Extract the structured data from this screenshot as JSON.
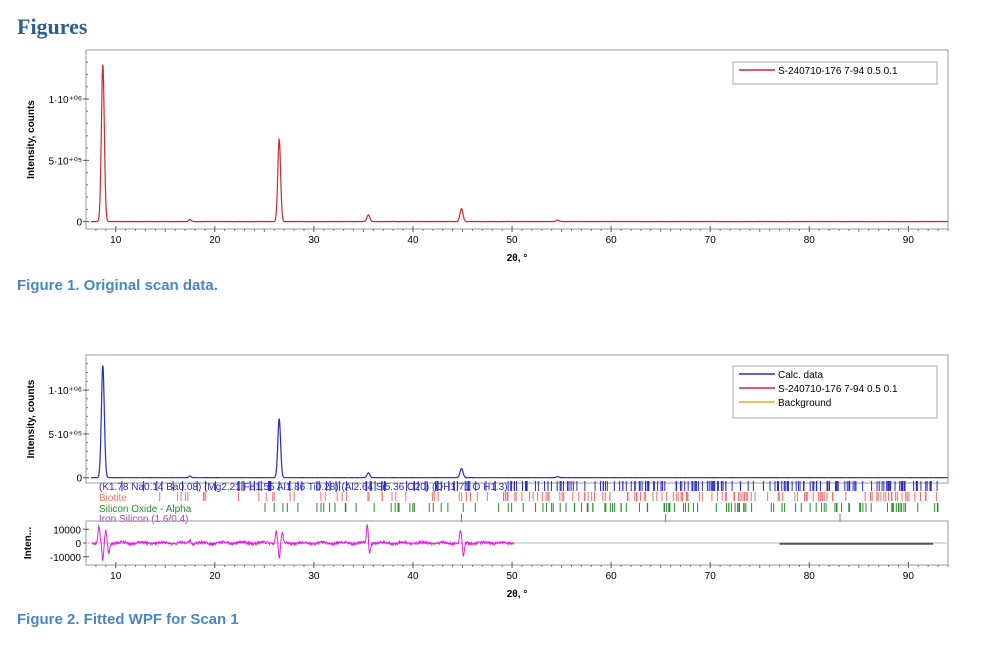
{
  "heading": "Figures",
  "captions": {
    "figure1": "Figure 1. Original scan data.",
    "figure2": "Figure 2.  Fitted WPF for Scan 1"
  },
  "colors": {
    "heading": "#2e5e8e",
    "caption": "#4a86c5",
    "scan": "#cc2a2a",
    "calc": "#2a2ac8",
    "background_line": "#e8b020",
    "biotite": "#f07070",
    "silicon_oxide": "#2a8a2a",
    "iron_silicon": "#b040d0",
    "difference": "#e020e0"
  },
  "chart_data": [
    {
      "type": "line",
      "xlabel": "2θ, °",
      "ylabel": "Intensity, counts",
      "xlim": [
        7,
        94
      ],
      "ylim": [
        -60000,
        1400000
      ],
      "x_ticks": [
        "10",
        "20",
        "30",
        "40",
        "50",
        "60",
        "70",
        "80",
        "90"
      ],
      "y_ticks": [
        "0",
        "5·10⁺⁰⁵",
        "1·10⁺⁰⁶"
      ],
      "legend": [
        "S-240710-176 7-94 0.5 0.1"
      ],
      "legend_position": "top-right",
      "series": [
        {
          "name": "S-240710-176 7-94 0.5 0.1",
          "peaks": [
            {
              "x": 8.7,
              "y": 1280000,
              "w": 0.15
            },
            {
              "x": 17.5,
              "y": 18000,
              "w": 0.12
            },
            {
              "x": 26.5,
              "y": 670000,
              "w": 0.14
            },
            {
              "x": 35.5,
              "y": 55000,
              "w": 0.14
            },
            {
              "x": 44.9,
              "y": 105000,
              "w": 0.15
            },
            {
              "x": 54.6,
              "y": 12000,
              "w": 0.14
            }
          ]
        }
      ]
    },
    {
      "type": "line",
      "xlabel": "2θ, °",
      "ylabel": "Intensity, counts",
      "ylabel_residual": "Inten...",
      "xlim": [
        7,
        94
      ],
      "ylim": [
        -60000,
        1400000
      ],
      "x_ticks": [
        "10",
        "20",
        "30",
        "40",
        "50",
        "60",
        "70",
        "80",
        "90"
      ],
      "y_ticks": [
        "0",
        "5·10⁺⁰⁵",
        "1·10⁺⁰⁶"
      ],
      "residual_ticks": [
        "10000",
        "0",
        "-10000"
      ],
      "residual_ylim": [
        -16000,
        16000
      ],
      "legend": [
        "Calc. data",
        "S-240710-176 7-94 0.5 0.1",
        "Background"
      ],
      "legend_position": "top-right",
      "series": [
        {
          "name": "Calc. data",
          "peaks": [
            {
              "x": 8.7,
              "y": 1280000,
              "w": 0.15
            },
            {
              "x": 17.5,
              "y": 18000,
              "w": 0.12
            },
            {
              "x": 26.5,
              "y": 670000,
              "w": 0.14
            },
            {
              "x": 35.5,
              "y": 55000,
              "w": 0.14
            },
            {
              "x": 44.9,
              "y": 105000,
              "w": 0.15
            },
            {
              "x": 54.6,
              "y": 12000,
              "w": 0.14
            }
          ]
        }
      ],
      "phases": [
        {
          "name": "(K1.78 Na0.14 Ba0.08) (Mg2.21 Fe1.55 Al1.86 Ti0.28) (Al2.64 Si5.36 O20) (OH1.71 O H1.3)",
          "color_key": "calc"
        },
        {
          "name": "Biotite",
          "color_key": "biotite"
        },
        {
          "name": "Silicon Oxide - Alpha",
          "color_key": "silicon_oxide"
        },
        {
          "name": "Iron Silicon (1.6/0.4)",
          "color_key": "iron_silicon"
        }
      ],
      "residual": {
        "spikes": [
          {
            "x": 8.3,
            "y": 12000
          },
          {
            "x": 8.7,
            "y": -13000
          },
          {
            "x": 9.0,
            "y": 9000
          },
          {
            "x": 9.3,
            "y": -7000
          },
          {
            "x": 17.5,
            "y": 2500
          },
          {
            "x": 26.2,
            "y": 9000
          },
          {
            "x": 26.5,
            "y": -11000
          },
          {
            "x": 26.8,
            "y": 7000
          },
          {
            "x": 35.4,
            "y": 14000
          },
          {
            "x": 35.6,
            "y": -8000
          },
          {
            "x": 44.8,
            "y": 9000
          },
          {
            "x": 45.1,
            "y": -10000
          }
        ]
      }
    }
  ]
}
